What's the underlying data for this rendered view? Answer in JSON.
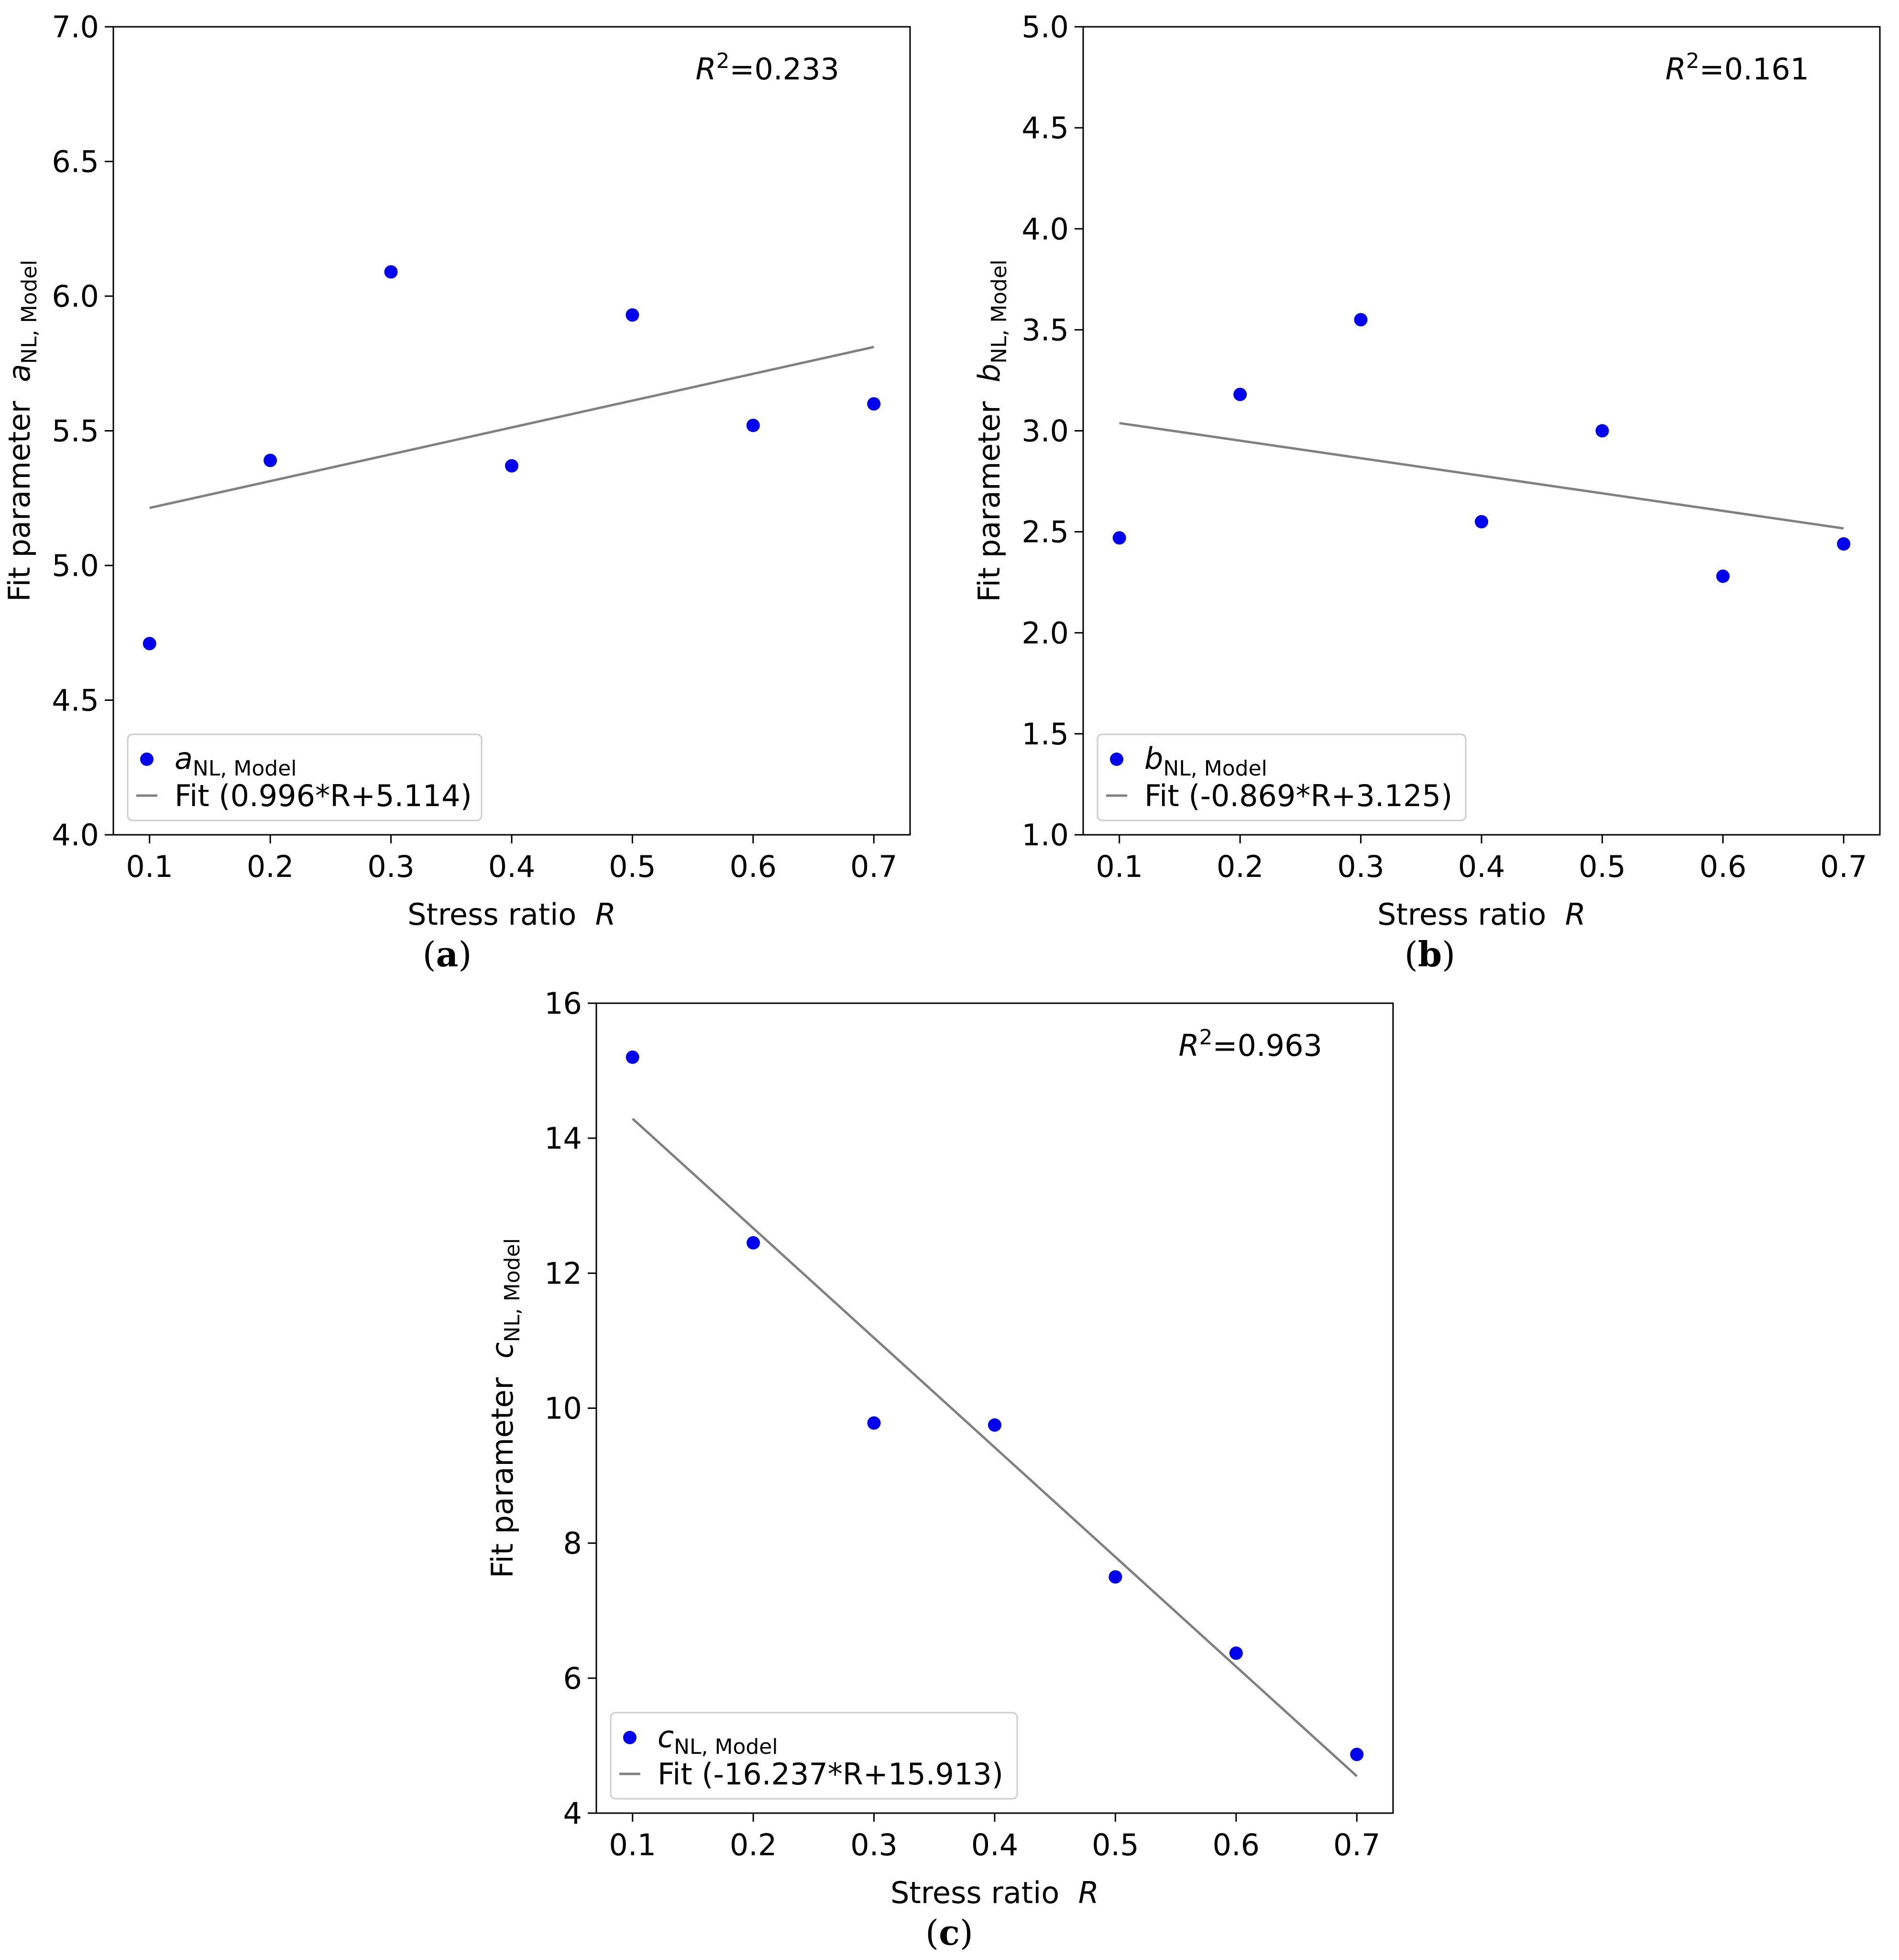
{
  "chart_data": [
    {
      "id": "a",
      "type": "scatter",
      "panel_label": "(a)",
      "panel_letter": "a",
      "title": "",
      "xlabel": "Stress ratio",
      "xlabel_var": "R",
      "ylabel": "Fit parameter",
      "ylabel_var": "a",
      "ylabel_sub": "NL, Model",
      "xlim": [
        0.07,
        0.73
      ],
      "ylim": [
        4.0,
        7.0
      ],
      "xticks": [
        0.1,
        0.2,
        0.3,
        0.4,
        0.5,
        0.6,
        0.7
      ],
      "xtick_labels": [
        "0.1",
        "0.2",
        "0.3",
        "0.4",
        "0.5",
        "0.6",
        "0.7"
      ],
      "yticks": [
        4.0,
        4.5,
        5.0,
        5.5,
        6.0,
        6.5,
        7.0
      ],
      "ytick_labels": [
        "4.0",
        "4.5",
        "5.0",
        "5.5",
        "6.0",
        "6.5",
        "7.0"
      ],
      "r2": {
        "symbol": "R",
        "exp": "2",
        "value": "=0.233"
      },
      "legend": {
        "position": "lower-left",
        "points_var": "a",
        "points_sub": "NL, Model",
        "fit_label": "Fit (0.996*R+5.114)"
      },
      "series": [
        {
          "name": "aNL, Model",
          "x": [
            0.1,
            0.2,
            0.3,
            0.4,
            0.5,
            0.6,
            0.7
          ],
          "y": [
            4.71,
            5.39,
            6.09,
            5.37,
            5.93,
            5.52,
            5.6
          ]
        }
      ],
      "fit": {
        "slope": 0.996,
        "intercept": 5.114,
        "x_range": [
          0.1,
          0.7
        ]
      },
      "colors": {
        "points": "#0000ee",
        "fit": "#808080"
      }
    },
    {
      "id": "b",
      "type": "scatter",
      "panel_label": "(b)",
      "panel_letter": "b",
      "title": "",
      "xlabel": "Stress ratio",
      "xlabel_var": "R",
      "ylabel": "Fit parameter",
      "ylabel_var": "b",
      "ylabel_sub": "NL, Model",
      "xlim": [
        0.07,
        0.73
      ],
      "ylim": [
        1.0,
        5.0
      ],
      "xticks": [
        0.1,
        0.2,
        0.3,
        0.4,
        0.5,
        0.6,
        0.7
      ],
      "xtick_labels": [
        "0.1",
        "0.2",
        "0.3",
        "0.4",
        "0.5",
        "0.6",
        "0.7"
      ],
      "yticks": [
        1.0,
        1.5,
        2.0,
        2.5,
        3.0,
        3.5,
        4.0,
        4.5,
        5.0
      ],
      "ytick_labels": [
        "1.0",
        "1.5",
        "2.0",
        "2.5",
        "3.0",
        "3.5",
        "4.0",
        "4.5",
        "5.0"
      ],
      "r2": {
        "symbol": "R",
        "exp": "2",
        "value": "=0.161"
      },
      "legend": {
        "position": "lower-left",
        "points_var": "b",
        "points_sub": "NL, Model",
        "fit_label": "Fit (-0.869*R+3.125)"
      },
      "series": [
        {
          "name": "bNL, Model",
          "x": [
            0.1,
            0.2,
            0.3,
            0.4,
            0.5,
            0.6,
            0.7
          ],
          "y": [
            2.47,
            3.18,
            3.55,
            2.55,
            3.0,
            2.28,
            2.44
          ]
        }
      ],
      "fit": {
        "slope": -0.869,
        "intercept": 3.125,
        "x_range": [
          0.1,
          0.7
        ]
      },
      "colors": {
        "points": "#0000ee",
        "fit": "#808080"
      }
    },
    {
      "id": "c",
      "type": "scatter",
      "panel_label": "(c)",
      "panel_letter": "c",
      "title": "",
      "xlabel": "Stress ratio",
      "xlabel_var": "R",
      "ylabel": "Fit parameter",
      "ylabel_var": "c",
      "ylabel_sub": "NL, Model",
      "xlim": [
        0.07,
        0.73
      ],
      "ylim": [
        4,
        16
      ],
      "xticks": [
        0.1,
        0.2,
        0.3,
        0.4,
        0.5,
        0.6,
        0.7
      ],
      "xtick_labels": [
        "0.1",
        "0.2",
        "0.3",
        "0.4",
        "0.5",
        "0.6",
        "0.7"
      ],
      "yticks": [
        4,
        6,
        8,
        10,
        12,
        14,
        16
      ],
      "ytick_labels": [
        "4",
        "6",
        "8",
        "10",
        "12",
        "14",
        "16"
      ],
      "r2": {
        "symbol": "R",
        "exp": "2",
        "value": "=0.963"
      },
      "legend": {
        "position": "lower-left",
        "points_var": "c",
        "points_sub": "NL, Model",
        "fit_label": "Fit (-16.237*R+15.913)"
      },
      "series": [
        {
          "name": "cNL, Model",
          "x": [
            0.1,
            0.2,
            0.3,
            0.4,
            0.5,
            0.6,
            0.7
          ],
          "y": [
            15.2,
            12.45,
            9.78,
            9.75,
            7.5,
            6.37,
            4.87
          ]
        }
      ],
      "fit": {
        "slope": -16.237,
        "intercept": 15.913,
        "x_range": [
          0.1,
          0.7
        ]
      },
      "colors": {
        "points": "#0000ee",
        "fit": "#808080"
      }
    }
  ]
}
